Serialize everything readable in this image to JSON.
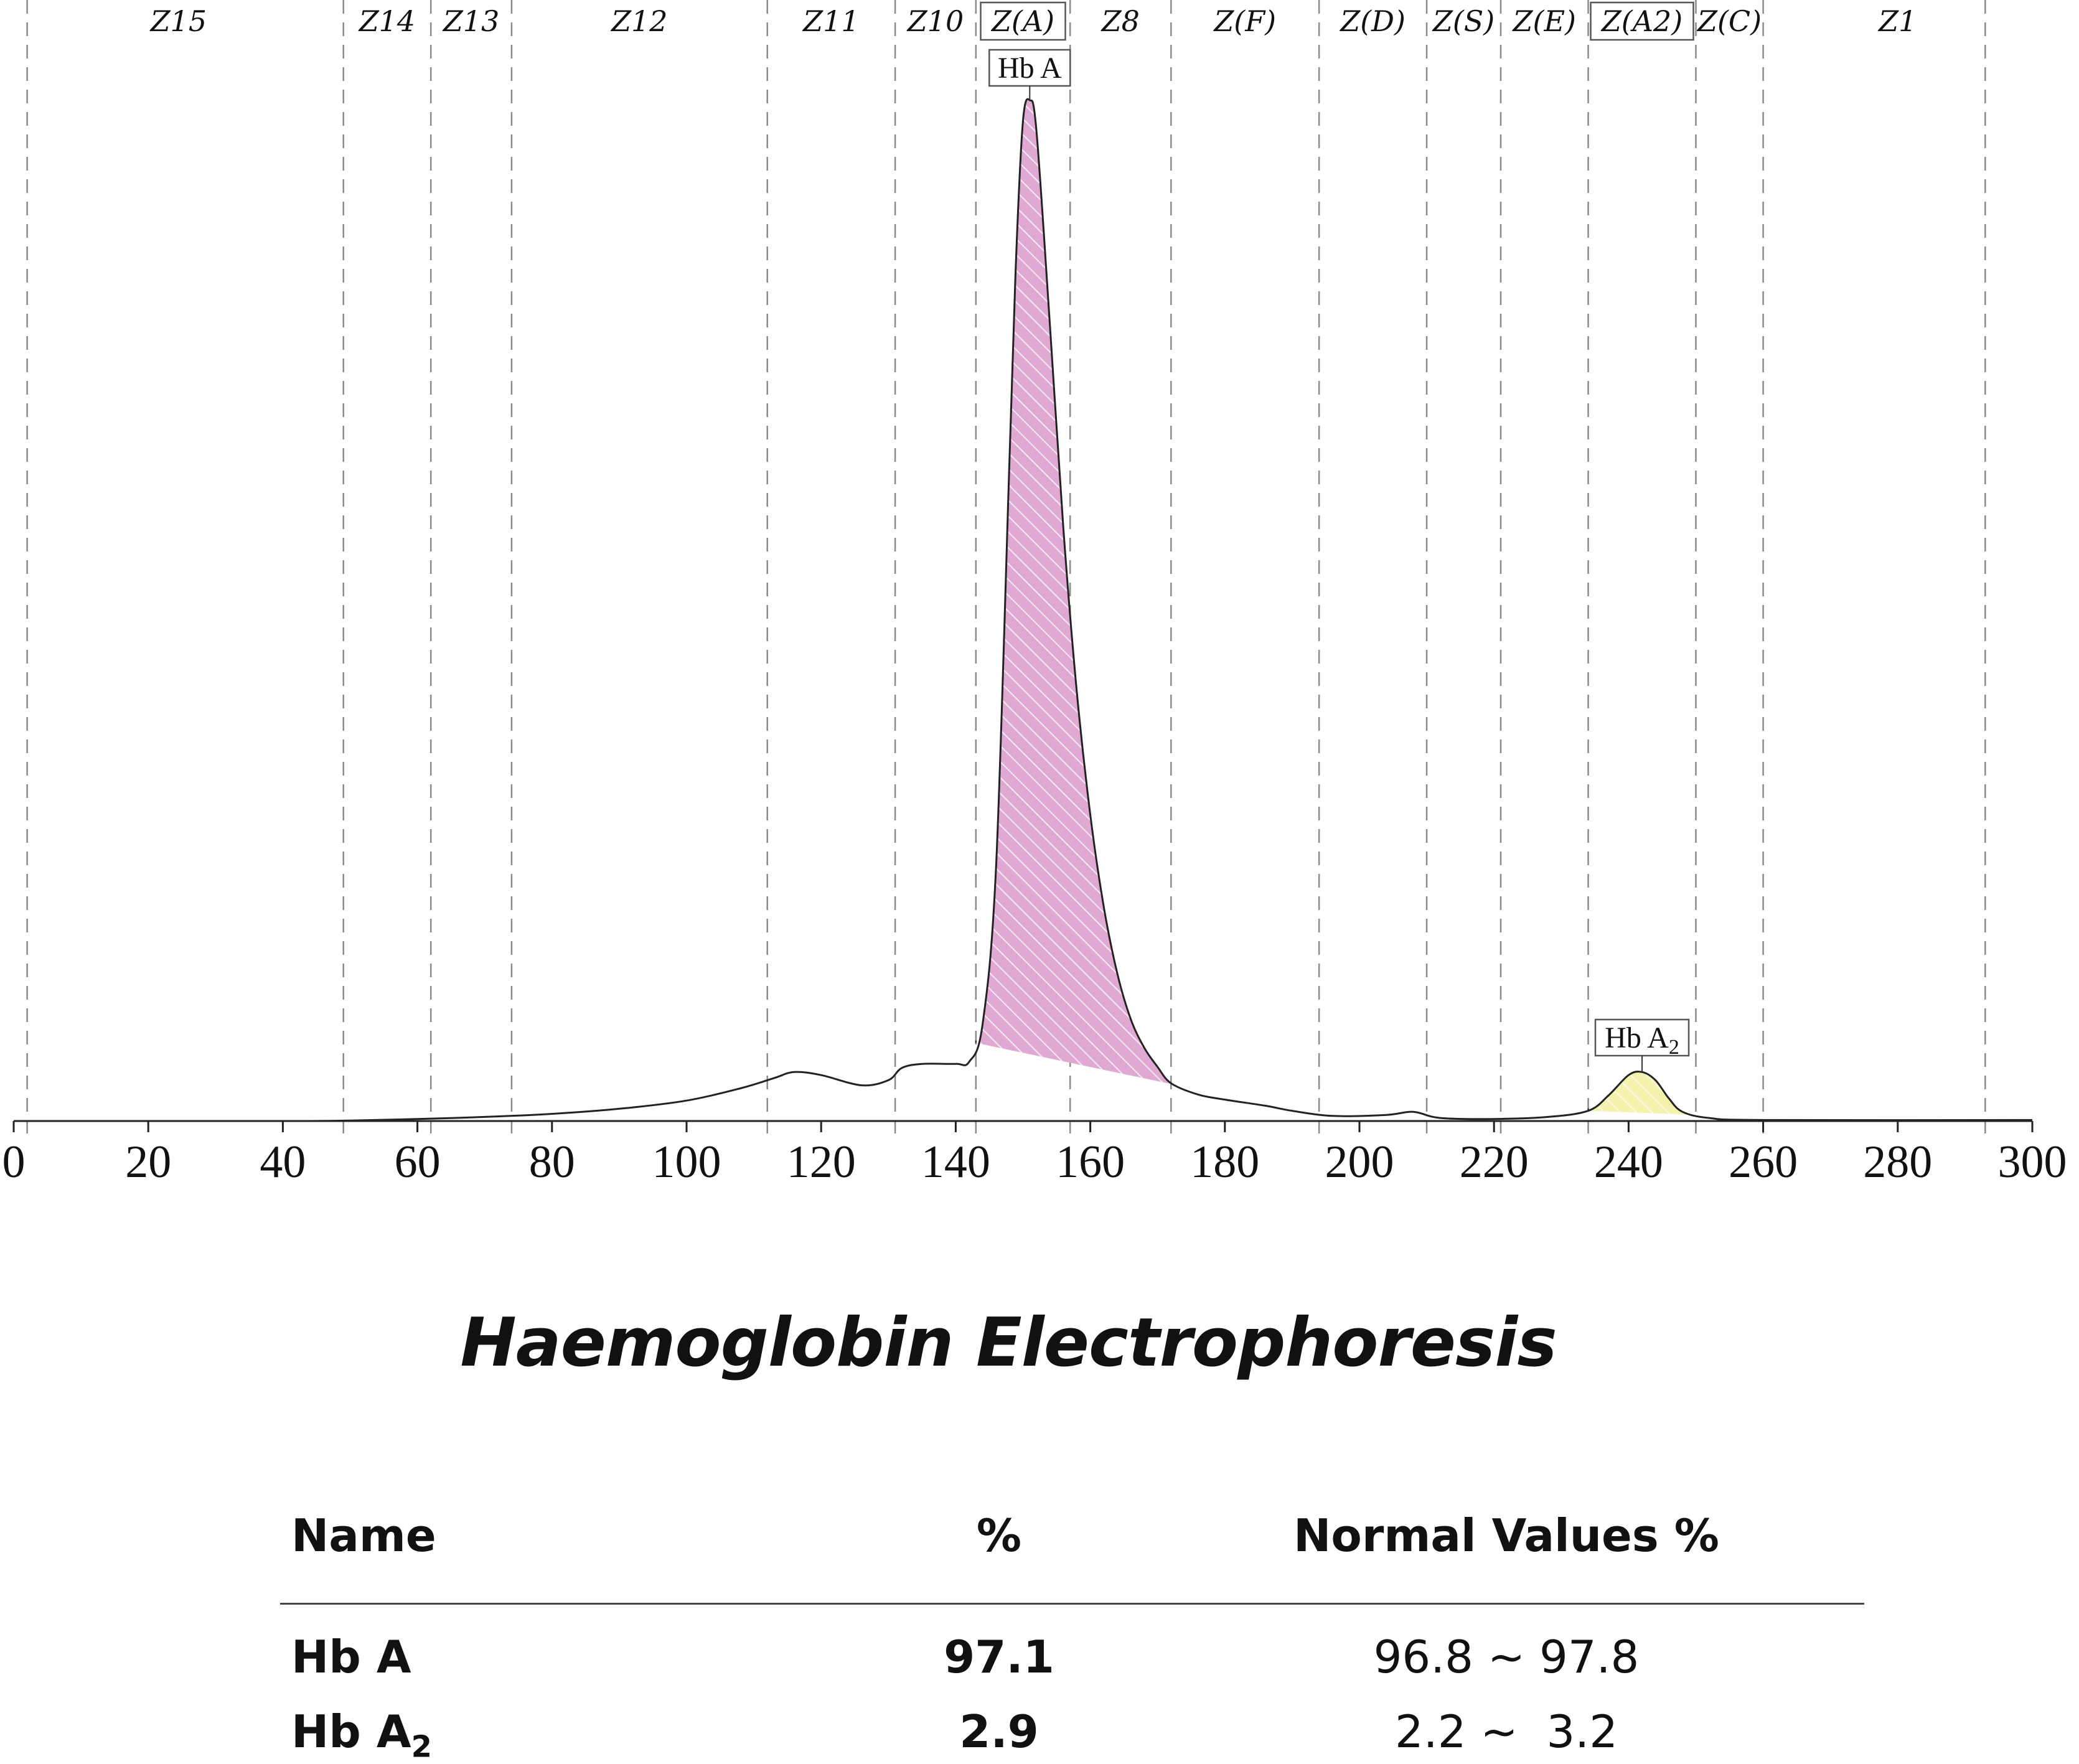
{
  "chart_data": {
    "type": "line",
    "xlim": [
      0,
      300
    ],
    "x_ticks": [
      "0",
      "20",
      "40",
      "60",
      "80",
      "100",
      "120",
      "140",
      "160",
      "180",
      "200",
      "220",
      "240",
      "260",
      "280",
      "300"
    ],
    "zones": [
      {
        "label": "Z15",
        "start": 0,
        "end": 49,
        "boxed": false
      },
      {
        "label": "Z14",
        "start": 49,
        "end": 62,
        "boxed": false
      },
      {
        "label": "Z13",
        "start": 62,
        "end": 74,
        "boxed": false
      },
      {
        "label": "Z12",
        "start": 74,
        "end": 112,
        "boxed": false
      },
      {
        "label": "Z11",
        "start": 112,
        "end": 131,
        "boxed": false
      },
      {
        "label": "Z10",
        "start": 131,
        "end": 143,
        "boxed": false
      },
      {
        "label": "Z(A)",
        "start": 143,
        "end": 157,
        "boxed": true
      },
      {
        "label": "Z8",
        "start": 157,
        "end": 172,
        "boxed": false
      },
      {
        "label": "Z(F)",
        "start": 172,
        "end": 194,
        "boxed": false
      },
      {
        "label": "Z(D)",
        "start": 194,
        "end": 210,
        "boxed": false
      },
      {
        "label": "Z(S)",
        "start": 210,
        "end": 221,
        "boxed": false
      },
      {
        "label": "Z(E)",
        "start": 221,
        "end": 234,
        "boxed": false
      },
      {
        "label": "Z(A2)",
        "start": 234,
        "end": 250,
        "boxed": true
      },
      {
        "label": "Z(C)",
        "start": 250,
        "end": 260,
        "boxed": false
      },
      {
        "label": "Z1",
        "start": 260,
        "end": 300,
        "boxed": false
      }
    ],
    "boundaries": [
      2,
      49,
      62,
      74,
      112,
      131,
      143,
      157,
      172,
      194,
      210,
      221,
      234,
      250,
      260,
      293
    ],
    "trace": [
      [
        0,
        0
      ],
      [
        40,
        0
      ],
      [
        50,
        0.05
      ],
      [
        60,
        0.2
      ],
      [
        70,
        0.4
      ],
      [
        80,
        0.7
      ],
      [
        90,
        1.2
      ],
      [
        100,
        2.0
      ],
      [
        108,
        3.2
      ],
      [
        113,
        4.2
      ],
      [
        116,
        4.8
      ],
      [
        120,
        4.5
      ],
      [
        126,
        3.5
      ],
      [
        130,
        4.0
      ],
      [
        132,
        5.2
      ],
      [
        135,
        5.6
      ],
      [
        140,
        5.6
      ],
      [
        142,
        5.8
      ],
      [
        144,
        9.5
      ],
      [
        146,
        25
      ],
      [
        148,
        65
      ],
      [
        149,
        85
      ],
      [
        150,
        98
      ],
      [
        151,
        100
      ],
      [
        152,
        97
      ],
      [
        154,
        78
      ],
      [
        156,
        58
      ],
      [
        158,
        42
      ],
      [
        160,
        30
      ],
      [
        162,
        21
      ],
      [
        164,
        14.5
      ],
      [
        166,
        10
      ],
      [
        168,
        7.2
      ],
      [
        170,
        5.3
      ],
      [
        172,
        3.7
      ],
      [
        176,
        2.6
      ],
      [
        180,
        2.1
      ],
      [
        186,
        1.5
      ],
      [
        190,
        1.0
      ],
      [
        196,
        0.5
      ],
      [
        204,
        0.6
      ],
      [
        208,
        0.9
      ],
      [
        212,
        0.3
      ],
      [
        220,
        0.2
      ],
      [
        228,
        0.4
      ],
      [
        234,
        1.0
      ],
      [
        237,
        2.5
      ],
      [
        240,
        4.5
      ],
      [
        242,
        4.8
      ],
      [
        244,
        4.0
      ],
      [
        246,
        2.2
      ],
      [
        248,
        0.9
      ],
      [
        252,
        0.3
      ],
      [
        260,
        0.1
      ],
      [
        300,
        0.1
      ]
    ],
    "peaks": [
      {
        "label": "Hb A",
        "sub": "",
        "x": 151,
        "fill_start": 143,
        "fill_end": 172.5,
        "color": "#dfa9d3"
      },
      {
        "label": "Hb A",
        "sub": "2",
        "x": 242,
        "fill_start": 234,
        "fill_end": 250,
        "color": "#f5f2b0"
      }
    ]
  },
  "report": {
    "title": "Haemoglobin Electrophoresis",
    "columns": [
      "Name",
      "%",
      "Normal Values %"
    ],
    "rows": [
      {
        "name": "Hb A",
        "sub": "",
        "percent": "97.1",
        "normal": "96.8 ~ 97.8"
      },
      {
        "name": "Hb A",
        "sub": "2",
        "percent": "2.9",
        "normal": "2.2 ~  3.2"
      }
    ]
  }
}
